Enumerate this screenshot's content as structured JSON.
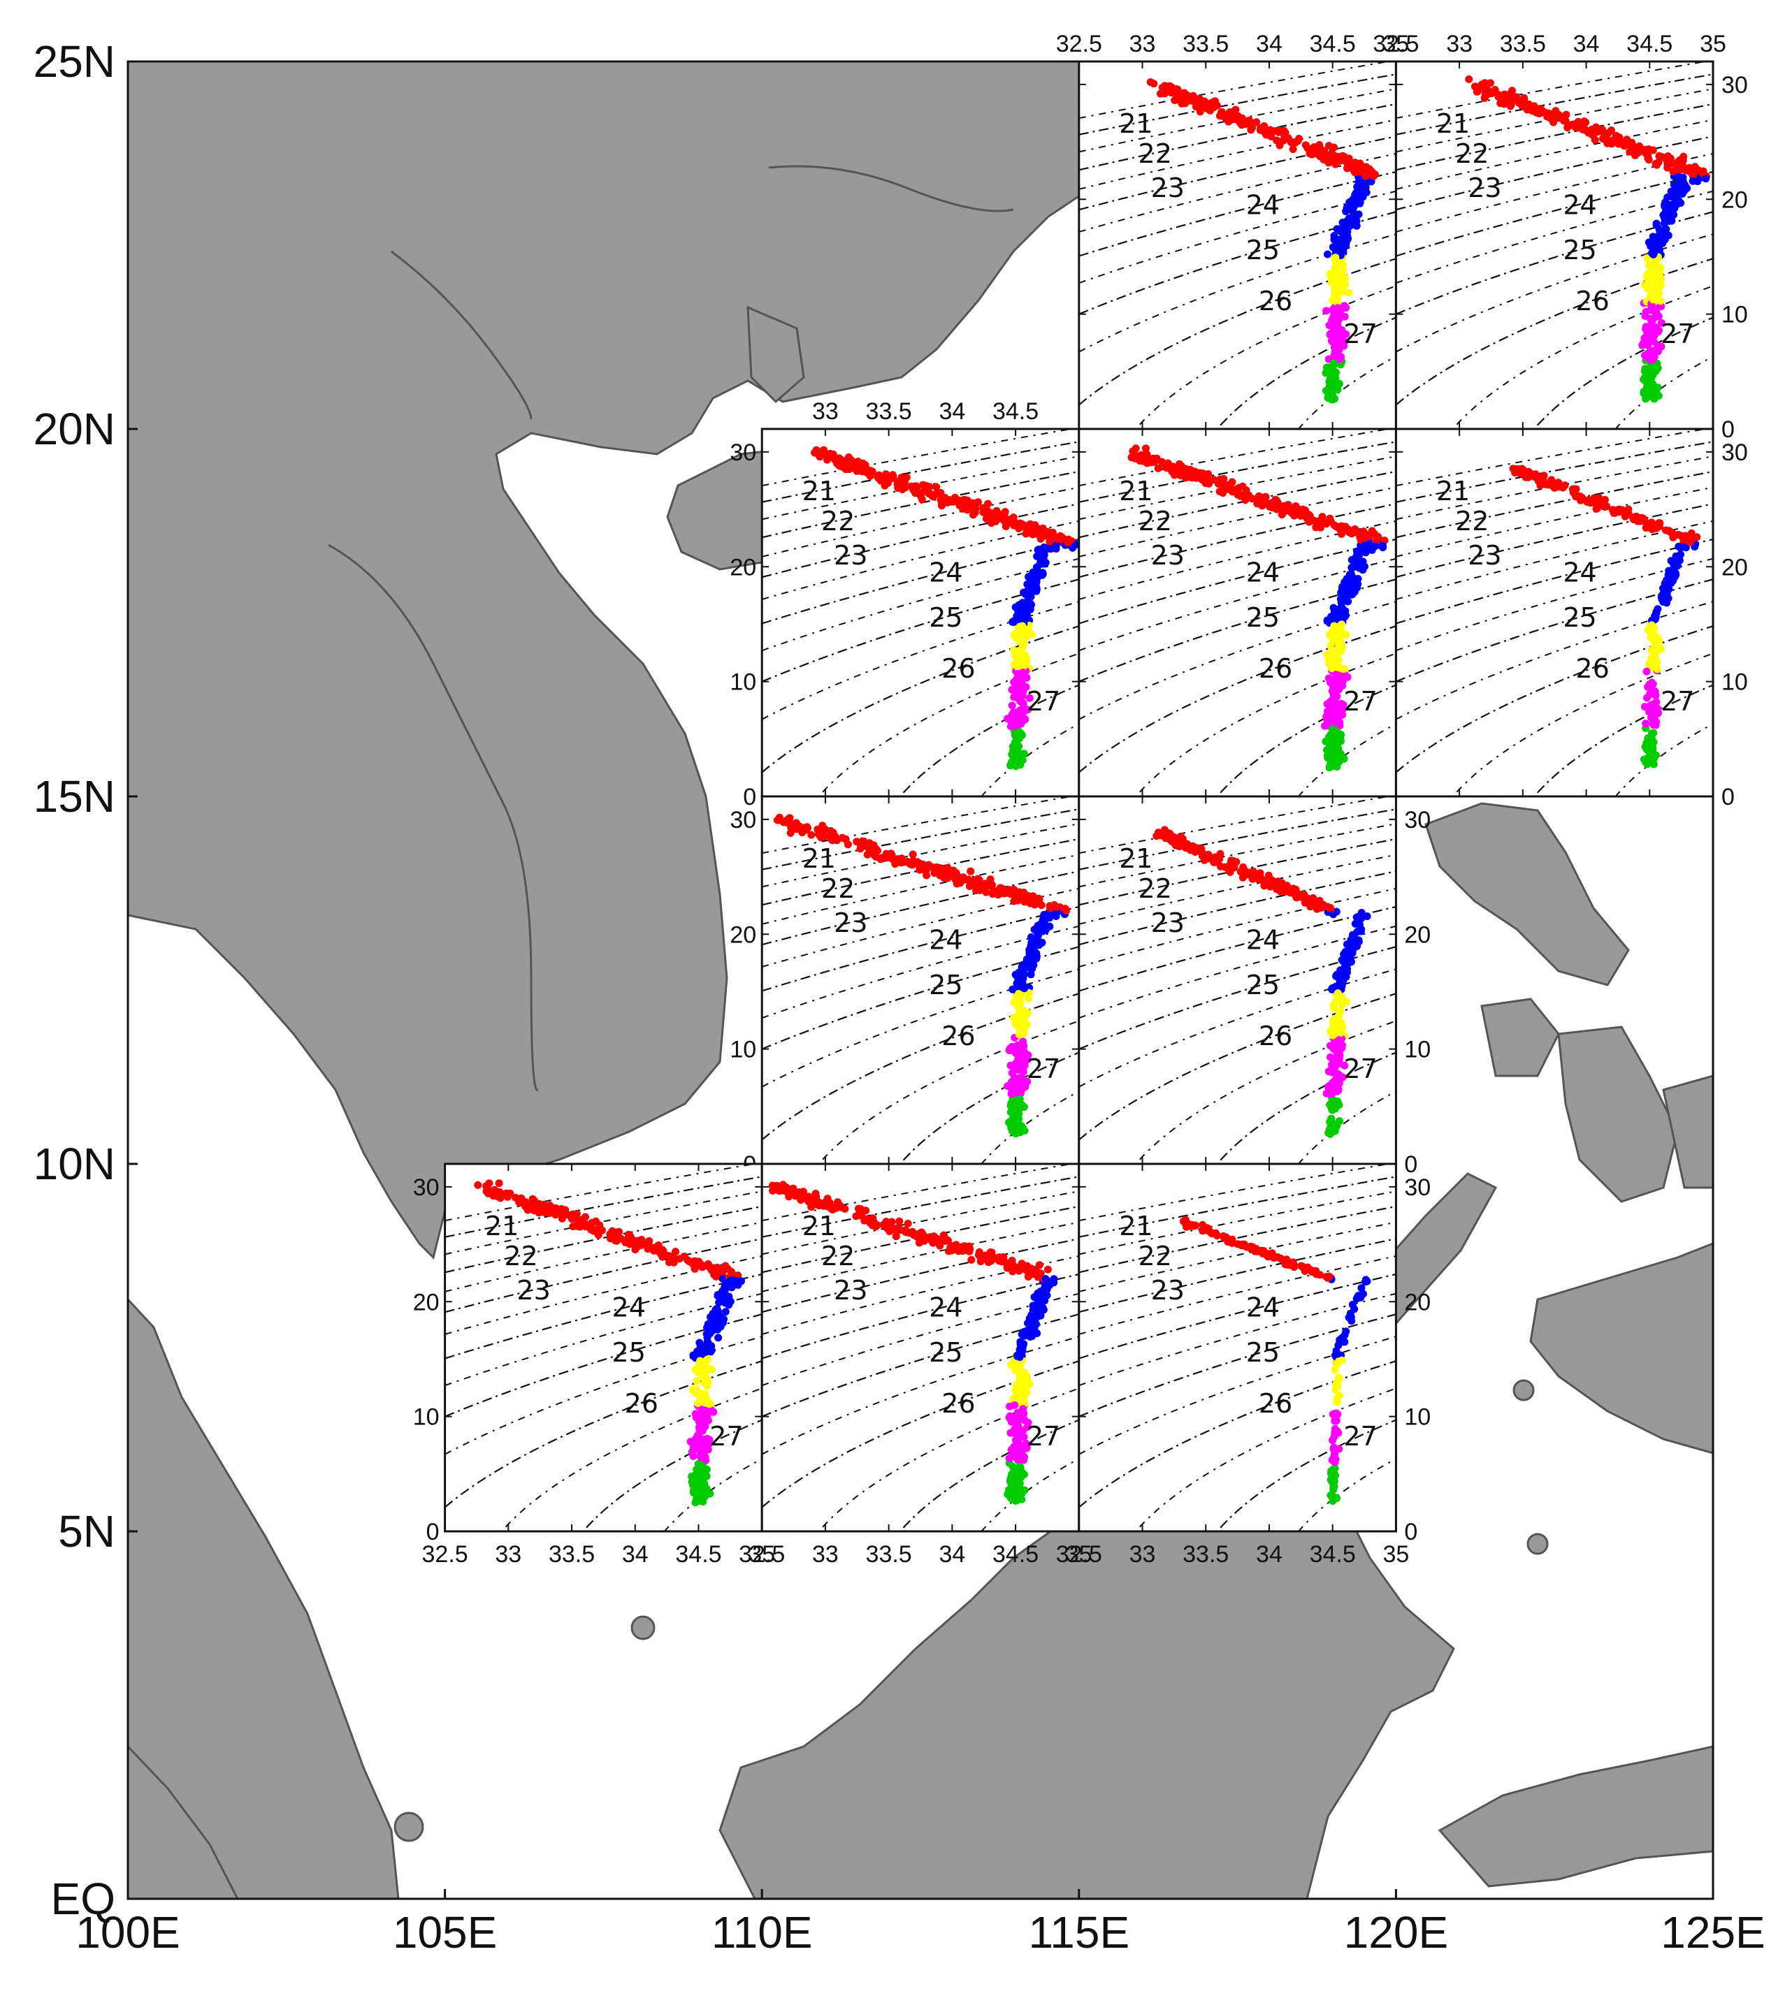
{
  "map": {
    "lon_range": [
      100,
      125
    ],
    "lat_range": [
      0,
      25
    ],
    "lon_ticks": [
      "100E",
      "105E",
      "110E",
      "115E",
      "120E",
      "125E"
    ],
    "lat_ticks": [
      "EQ",
      "5N",
      "10N",
      "15N",
      "20N",
      "25N"
    ],
    "land_color": "#999999",
    "sea_color": "#ffffff",
    "coast_color": "#555555"
  },
  "inset_axes": {
    "salinity_ticks": [
      "32.5",
      "33",
      "33.5",
      "34",
      "34.5",
      "35"
    ],
    "temp_ticks": [
      "0",
      "10",
      "20",
      "30"
    ],
    "salinity_range": [
      32.5,
      35
    ],
    "temp_range": [
      0,
      32
    ],
    "density_contours": [
      "21",
      "22",
      "23",
      "24",
      "25",
      "26",
      "27"
    ]
  },
  "water_mass_classes": [
    {
      "temp_range": [
        22,
        30
      ],
      "color": "#ff0000"
    },
    {
      "temp_range": [
        15,
        22
      ],
      "color": "#0000ff"
    },
    {
      "temp_range": [
        11,
        15
      ],
      "color": "#ffff00"
    },
    {
      "temp_range": [
        6,
        11
      ],
      "color": "#ff00ff"
    },
    {
      "temp_range": [
        2,
        6
      ],
      "color": "#00cc00"
    }
  ],
  "chart_data": {
    "type": "scatter",
    "xlabel": "",
    "ylabel": "",
    "xlim": [
      32.5,
      35
    ],
    "ylim": [
      0,
      32
    ],
    "panels": [
      {
        "lon": [
          115,
          120
        ],
        "lat": [
          20,
          25
        ],
        "points": 520,
        "smin": 33.1,
        "smax": 34.85,
        "spread": 1.0
      },
      {
        "lon": [
          120,
          125
        ],
        "lat": [
          20,
          25
        ],
        "points": 520,
        "smin": 33.1,
        "smax": 34.95,
        "spread": 1.0
      },
      {
        "lon": [
          110,
          115
        ],
        "lat": [
          15,
          20
        ],
        "points": 520,
        "smin": 32.9,
        "smax": 34.95,
        "spread": 1.0
      },
      {
        "lon": [
          115,
          120
        ],
        "lat": [
          15,
          20
        ],
        "points": 520,
        "smin": 32.9,
        "smax": 34.9,
        "spread": 1.0
      },
      {
        "lon": [
          120,
          125
        ],
        "lat": [
          15,
          20
        ],
        "points": 300,
        "smin": 33.1,
        "smax": 34.9,
        "spread": 0.7
      },
      {
        "lon": [
          110,
          115
        ],
        "lat": [
          10,
          15
        ],
        "points": 520,
        "smin": 32.6,
        "smax": 34.9,
        "spread": 1.0
      },
      {
        "lon": [
          115,
          120
        ],
        "lat": [
          10,
          15
        ],
        "points": 400,
        "smin": 32.9,
        "smax": 34.5,
        "spread": 0.8
      },
      {
        "lon": [
          105,
          110
        ],
        "lat": [
          5,
          10
        ],
        "points": 460,
        "smin": 32.8,
        "smax": 34.8,
        "spread": 1.0
      },
      {
        "lon": [
          110,
          115
        ],
        "lat": [
          5,
          10
        ],
        "points": 460,
        "smin": 32.6,
        "smax": 34.8,
        "spread": 1.0
      },
      {
        "lon": [
          115,
          120
        ],
        "lat": [
          5,
          10
        ],
        "points": 180,
        "smin": 32.6,
        "smax": 34.5,
        "spread": 0.45
      }
    ]
  }
}
